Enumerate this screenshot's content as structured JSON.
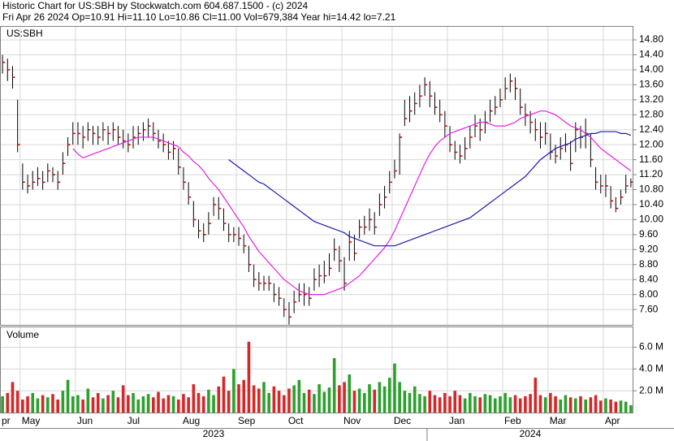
{
  "chart_data": {
    "type": "ohlc",
    "title": "Historic Chart for US:SBH by Stockwatch.com 604.687.1500 - (c) 2024",
    "subtitle": "Fri Apr 26 2024  Op=10.91  Hi=11.10  Lo=10.86  Cl=11.00  Vol=679,384  Year hi=14.42  lo=7.21",
    "symbol": "US:SBH",
    "volume_label": "Volume",
    "grid": true,
    "bar_color": "#000000",
    "close_color": "#cc0000",
    "up_color": "#2ca02c",
    "down_color": "#d62728",
    "categories": [
      "pr",
      null,
      null,
      null,
      "May",
      null,
      null,
      null,
      null,
      null,
      null,
      null,
      null,
      null,
      null,
      "Jun",
      null,
      null,
      null,
      null,
      null,
      null,
      null,
      null,
      null,
      "Jul",
      null,
      null,
      null,
      null,
      null,
      null,
      null,
      null,
      null,
      null,
      "Aug",
      null,
      null,
      null,
      null,
      null,
      null,
      null,
      null,
      null,
      null,
      "Sep",
      null,
      null,
      null,
      null,
      null,
      null,
      null,
      null,
      null,
      "Oct",
      null,
      null,
      null,
      null,
      null,
      null,
      null,
      null,
      null,
      null,
      "Nov",
      null,
      null,
      null,
      null,
      null,
      null,
      null,
      null,
      null,
      "Dec",
      null,
      null,
      null,
      null,
      null,
      null,
      null,
      null,
      null,
      null,
      "Jan",
      null,
      null,
      null,
      null,
      null,
      null,
      null,
      null,
      null,
      null,
      "Feb",
      null,
      null,
      null,
      null,
      null,
      null,
      null,
      null,
      "Mar",
      null,
      null,
      null,
      null,
      null,
      null,
      null,
      null,
      null,
      null,
      "Apr",
      null,
      null,
      null,
      null,
      null
    ],
    "years": [
      "2023",
      "2024"
    ],
    "high": [
      14.4,
      14.3,
      14.1,
      13.2,
      11.5,
      11.2,
      11.3,
      11.4,
      11.3,
      11.5,
      11.4,
      11.3,
      11.8,
      12.2,
      12.6,
      12.6,
      12.5,
      12.6,
      12.5,
      12.5,
      12.6,
      12.5,
      12.6,
      12.5,
      12.4,
      12.3,
      12.5,
      12.5,
      12.6,
      12.7,
      12.6,
      12.4,
      12.3,
      12.1,
      12.1,
      11.9,
      11.4,
      11.0,
      10.5,
      10.0,
      9.9,
      10.2,
      10.6,
      10.6,
      10.3,
      9.9,
      9.8,
      9.8,
      9.6,
      9.3,
      8.8,
      8.6,
      8.5,
      8.5,
      8.3,
      8.2,
      7.9,
      7.8,
      8.1,
      8.3,
      8.3,
      8.2,
      8.7,
      8.8,
      8.9,
      9.1,
      9.5,
      9.3,
      9.0,
      9.7,
      9.6,
      10.0,
      10.1,
      10.3,
      10.2,
      10.7,
      10.9,
      11.3,
      11.6,
      12.3,
      13.2,
      13.3,
      13.4,
      13.6,
      13.8,
      13.7,
      13.4,
      13.2,
      12.9,
      12.5,
      12.1,
      12.0,
      12.2,
      12.5,
      12.8,
      12.7,
      12.9,
      13.2,
      13.3,
      13.5,
      13.8,
      13.9,
      13.8,
      13.5,
      13.1,
      12.9,
      12.7,
      12.6,
      12.6,
      12.3,
      12.0,
      12.2,
      12.3,
      12.1,
      12.6,
      12.5,
      12.7,
      12.3,
      11.4,
      11.2,
      11.2,
      10.9,
      10.6,
      10.8,
      11.2,
      11.1
    ],
    "low": [
      13.9,
      13.7,
      13.5,
      11.8,
      10.8,
      10.7,
      10.8,
      10.9,
      10.8,
      11.0,
      11.0,
      10.8,
      11.2,
      11.7,
      12.0,
      12.0,
      11.9,
      12.1,
      12.0,
      12.0,
      12.1,
      12.0,
      12.1,
      12.0,
      11.9,
      11.8,
      11.9,
      12.0,
      12.1,
      12.2,
      12.1,
      11.9,
      11.8,
      11.6,
      11.6,
      11.2,
      10.8,
      10.4,
      9.8,
      9.5,
      9.4,
      9.6,
      10.1,
      10.0,
      9.7,
      9.4,
      9.4,
      9.3,
      9.1,
      8.6,
      8.2,
      8.1,
      8.1,
      8.1,
      7.8,
      7.7,
      7.4,
      7.2,
      7.5,
      7.8,
      7.7,
      7.7,
      8.1,
      8.2,
      8.3,
      8.5,
      8.9,
      8.6,
      8.1,
      8.9,
      8.9,
      9.5,
      9.6,
      9.7,
      9.6,
      10.1,
      10.3,
      10.7,
      11.1,
      11.2,
      12.5,
      12.6,
      12.8,
      13.0,
      13.3,
      13.0,
      12.8,
      12.6,
      12.2,
      11.8,
      11.6,
      11.5,
      11.6,
      11.9,
      12.2,
      12.1,
      12.3,
      12.6,
      12.8,
      13.0,
      13.2,
      13.4,
      13.2,
      12.8,
      12.5,
      12.3,
      12.1,
      11.9,
      12.0,
      11.6,
      11.5,
      11.6,
      11.8,
      11.3,
      11.8,
      11.9,
      11.9,
      11.4,
      10.8,
      10.7,
      10.6,
      10.3,
      10.2,
      10.4,
      10.7,
      10.86
    ],
    "close": [
      14.2,
      14.0,
      13.8,
      12.0,
      11.0,
      10.9,
      11.0,
      11.1,
      11.0,
      11.3,
      11.2,
      11.0,
      11.5,
      12.0,
      12.3,
      12.3,
      12.2,
      12.4,
      12.3,
      12.2,
      12.4,
      12.3,
      12.4,
      12.2,
      12.1,
      12.0,
      12.2,
      12.3,
      12.4,
      12.5,
      12.3,
      12.1,
      12.0,
      11.8,
      11.9,
      11.4,
      11.0,
      10.6,
      10.0,
      9.7,
      9.6,
      9.9,
      10.4,
      10.3,
      9.9,
      9.6,
      9.6,
      9.5,
      9.3,
      8.8,
      8.4,
      8.3,
      8.3,
      8.3,
      8.0,
      7.9,
      7.6,
      7.4,
      7.8,
      8.0,
      8.0,
      7.9,
      8.4,
      8.5,
      8.5,
      8.7,
      9.2,
      8.9,
      8.3,
      9.4,
      9.1,
      9.8,
      9.8,
      10.0,
      9.8,
      10.4,
      10.6,
      11.0,
      11.3,
      12.2,
      12.7,
      12.9,
      13.1,
      13.3,
      13.6,
      13.3,
      13.0,
      12.8,
      12.5,
      12.0,
      11.8,
      11.7,
      11.9,
      12.2,
      12.5,
      12.4,
      12.6,
      12.9,
      13.0,
      13.2,
      13.5,
      13.7,
      13.5,
      13.0,
      12.8,
      12.6,
      12.4,
      12.2,
      12.3,
      11.8,
      11.7,
      11.9,
      12.0,
      11.5,
      12.4,
      12.2,
      12.3,
      11.6,
      11.0,
      10.9,
      10.9,
      10.5,
      10.3,
      10.6,
      10.9,
      11.0
    ],
    "volume": [
      1.5,
      1.8,
      2.8,
      2.0,
      1.2,
      1.5,
      1.8,
      1.3,
      1.6,
      1.4,
      1.7,
      1.2,
      2.0,
      3.0,
      1.5,
      1.6,
      1.2,
      2.2,
      1.4,
      1.8,
      1.3,
      1.6,
      2.0,
      1.4,
      2.5,
      1.6,
      1.8,
      1.2,
      1.5,
      1.7,
      1.4,
      1.9,
      1.3,
      1.6,
      1.5,
      1.2,
      1.7,
      1.4,
      2.6,
      1.8,
      1.5,
      2.1,
      1.6,
      2.4,
      3.3,
      2.0,
      4.0,
      2.6,
      3.0,
      6.5,
      2.5,
      2.2,
      2.8,
      1.8,
      2.4,
      2.0,
      1.6,
      2.2,
      2.5,
      3.0,
      1.8,
      2.1,
      1.7,
      2.6,
      1.9,
      2.3,
      5.0,
      2.5,
      2.8,
      3.5,
      2.0,
      2.2,
      1.8,
      2.6,
      2.1,
      2.8,
      2.4,
      3.2,
      4.5,
      2.8,
      2.0,
      1.8,
      2.4,
      1.7,
      1.5,
      2.0,
      1.6,
      1.4,
      1.8,
      1.5,
      2.0,
      1.6,
      1.3,
      1.8,
      1.5,
      1.4,
      1.7,
      1.6,
      1.3,
      1.5,
      1.8,
      1.4,
      1.6,
      1.3,
      1.5,
      1.7,
      3.2,
      1.6,
      1.4,
      1.8,
      1.5,
      1.2,
      1.6,
      1.4,
      1.3,
      1.5,
      1.2,
      1.4,
      1.6,
      1.1,
      1.3,
      1.2,
      1.0,
      1.1,
      1.0,
      0.68
    ],
    "series": [
      {
        "color": "#e020e0",
        "values": [
          null,
          null,
          null,
          null,
          null,
          null,
          null,
          null,
          null,
          null,
          null,
          null,
          null,
          null,
          11.9,
          11.75,
          11.65,
          11.7,
          11.75,
          11.8,
          11.85,
          11.9,
          11.95,
          12.0,
          12.05,
          12.1,
          12.15,
          12.2,
          12.2,
          12.2,
          12.2,
          12.15,
          12.1,
          12.05,
          12.0,
          11.95,
          11.8,
          11.7,
          11.55,
          11.45,
          11.3,
          11.1,
          10.95,
          10.8,
          10.6,
          10.4,
          10.2,
          10.0,
          9.8,
          9.55,
          9.35,
          9.15,
          9.0,
          8.85,
          8.7,
          8.55,
          8.4,
          8.3,
          8.2,
          8.1,
          8.05,
          8.0,
          8.0,
          8.0,
          8.0,
          8.05,
          8.1,
          8.15,
          8.2,
          8.3,
          8.4,
          8.5,
          8.65,
          8.8,
          8.95,
          9.1,
          9.25,
          9.45,
          9.7,
          10.0,
          10.3,
          10.6,
          10.9,
          11.2,
          11.5,
          11.75,
          11.95,
          12.1,
          12.2,
          12.3,
          12.35,
          12.4,
          12.45,
          12.5,
          12.55,
          12.6,
          12.6,
          12.55,
          12.5,
          12.5,
          12.5,
          12.55,
          12.6,
          12.7,
          12.75,
          12.8,
          12.85,
          12.9,
          12.9,
          12.85,
          12.8,
          12.7,
          12.6,
          12.5,
          12.45,
          12.4,
          12.3,
          12.2,
          12.05,
          11.9,
          11.8,
          11.7,
          11.6,
          11.5,
          11.4,
          11.3
        ]
      },
      {
        "color": "#1a1aaa",
        "values": [
          null,
          null,
          null,
          null,
          null,
          null,
          null,
          null,
          null,
          null,
          null,
          null,
          null,
          null,
          null,
          null,
          null,
          null,
          null,
          null,
          null,
          null,
          null,
          null,
          null,
          null,
          null,
          null,
          null,
          null,
          null,
          null,
          null,
          null,
          null,
          null,
          null,
          null,
          null,
          null,
          null,
          null,
          null,
          null,
          null,
          11.6,
          11.5,
          11.4,
          11.3,
          11.2,
          11.1,
          11.0,
          10.95,
          10.85,
          10.75,
          10.65,
          10.55,
          10.45,
          10.35,
          10.25,
          10.15,
          10.05,
          9.95,
          9.9,
          9.85,
          9.8,
          9.75,
          9.7,
          9.65,
          9.55,
          9.5,
          9.45,
          9.4,
          9.35,
          9.3,
          9.3,
          9.3,
          9.3,
          9.3,
          9.35,
          9.4,
          9.45,
          9.5,
          9.55,
          9.6,
          9.65,
          9.7,
          9.75,
          9.8,
          9.85,
          9.9,
          9.95,
          10.0,
          10.05,
          10.15,
          10.25,
          10.35,
          10.45,
          10.55,
          10.65,
          10.75,
          10.85,
          10.95,
          11.05,
          11.15,
          11.3,
          11.45,
          11.6,
          11.7,
          11.8,
          11.9,
          11.95,
          12.0,
          12.05,
          12.15,
          12.2,
          12.25,
          12.3,
          12.3,
          12.35,
          12.35,
          12.35,
          12.35,
          12.3,
          12.3,
          12.25
        ]
      }
    ],
    "ylim": [
      7.19,
      15.17
    ],
    "yticks": [
      {
        "value": 7.6,
        "label": "7.60"
      },
      {
        "value": 8.0,
        "label": "8.00"
      },
      {
        "value": 8.4,
        "label": "8.40"
      },
      {
        "value": 8.8,
        "label": "8.80"
      },
      {
        "value": 9.2,
        "label": "9.20"
      },
      {
        "value": 9.6,
        "label": "9.60"
      },
      {
        "value": 10.0,
        "label": "10.00"
      },
      {
        "value": 10.4,
        "label": "10.40"
      },
      {
        "value": 10.8,
        "label": "10.80"
      },
      {
        "value": 11.2,
        "label": "11.20"
      },
      {
        "value": 11.6,
        "label": "11.60"
      },
      {
        "value": 12.0,
        "label": "12.00"
      },
      {
        "value": 12.4,
        "label": "12.40"
      },
      {
        "value": 12.8,
        "label": "12.80"
      },
      {
        "value": 13.2,
        "label": "13.20"
      },
      {
        "value": 13.6,
        "label": "13.60"
      },
      {
        "value": 14.0,
        "label": "14.00"
      },
      {
        "value": 14.4,
        "label": "14.40"
      },
      {
        "value": 14.8,
        "label": "14.80"
      }
    ],
    "volume_ylim": [
      0,
      7.9
    ],
    "volume_yticks": [
      {
        "value": 2,
        "label": "2.0 M"
      },
      {
        "value": 4,
        "label": "4.0 M"
      },
      {
        "value": 6,
        "label": "6.0 M"
      }
    ]
  }
}
